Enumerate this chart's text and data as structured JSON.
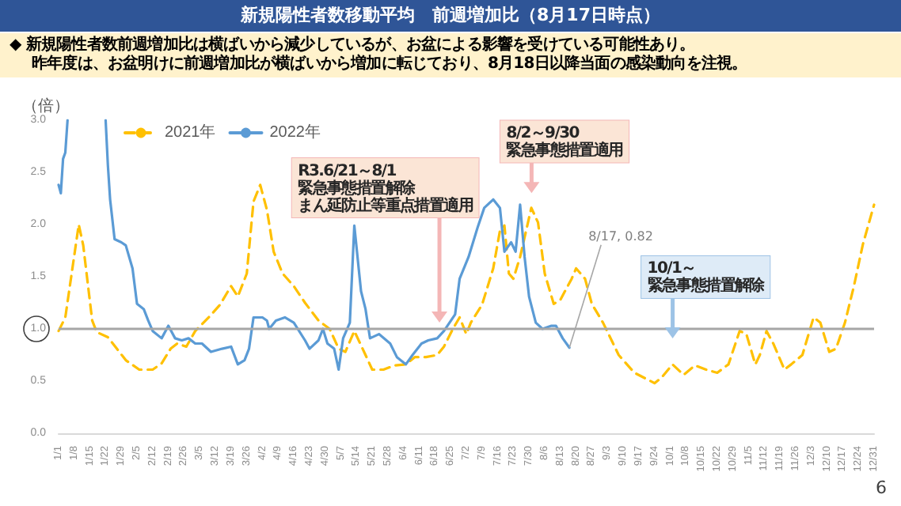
{
  "chart_data": {
    "type": "line",
    "title": "新規陽性者数移動平均　前週増加比（8月17日時点）",
    "subtitle": "◆ 新規陽性者数前週増加比は横ばいから減少しているが、お盆による影響を受けている可能性あり。昨年度は、お盆明けに前週増加比が横ばいから増加に転じており、8月18日以降当面の感染動向を注視。",
    "ylabel": "（倍）",
    "xlim": [
      "--01-01",
      "--12-31"
    ],
    "xticks": [
      {
        "value": "--01-01",
        "label": "1/1"
      },
      {
        "value": "--01-08",
        "label": "1/8"
      },
      {
        "value": "--01-15",
        "label": "1/15"
      },
      {
        "value": "--01-22",
        "label": "1/22"
      },
      {
        "value": "--01-29",
        "label": "1/29"
      },
      {
        "value": "--02-05",
        "label": "2/5"
      },
      {
        "value": "--02-12",
        "label": "2/12"
      },
      {
        "value": "--02-19",
        "label": "2/19"
      },
      {
        "value": "--02-26",
        "label": "2/26"
      },
      {
        "value": "--03-05",
        "label": "3/5"
      },
      {
        "value": "--03-12",
        "label": "3/12"
      },
      {
        "value": "--03-19",
        "label": "3/19"
      },
      {
        "value": "--03-26",
        "label": "3/26"
      },
      {
        "value": "--04-02",
        "label": "4/2"
      },
      {
        "value": "--04-09",
        "label": "4/9"
      },
      {
        "value": "--04-16",
        "label": "4/16"
      },
      {
        "value": "--04-23",
        "label": "4/23"
      },
      {
        "value": "--04-30",
        "label": "4/30"
      },
      {
        "value": "--05-07",
        "label": "5/7"
      },
      {
        "value": "--05-14",
        "label": "5/14"
      },
      {
        "value": "--05-21",
        "label": "5/21"
      },
      {
        "value": "--05-28",
        "label": "5/28"
      },
      {
        "value": "--06-04",
        "label": "6/4"
      },
      {
        "value": "--06-11",
        "label": "6/11"
      },
      {
        "value": "--06-18",
        "label": "6/18"
      },
      {
        "value": "--06-25",
        "label": "6/25"
      },
      {
        "value": "--07-02",
        "label": "7/2"
      },
      {
        "value": "--07-09",
        "label": "7/9"
      },
      {
        "value": "--07-16",
        "label": "7/16"
      },
      {
        "value": "--07-23",
        "label": "7/23"
      },
      {
        "value": "--07-30",
        "label": "7/30"
      },
      {
        "value": "--08-06",
        "label": "8/6"
      },
      {
        "value": "--08-13",
        "label": "8/13"
      },
      {
        "value": "--08-20",
        "label": "8/20"
      },
      {
        "value": "--08-27",
        "label": "8/27"
      },
      {
        "value": "--09-03",
        "label": "9/3"
      },
      {
        "value": "--09-10",
        "label": "9/10"
      },
      {
        "value": "--09-17",
        "label": "9/17"
      },
      {
        "value": "--09-24",
        "label": "9/24"
      },
      {
        "value": "--10-01",
        "label": "10/1"
      },
      {
        "value": "--10-08",
        "label": "10/8"
      },
      {
        "value": "--10-15",
        "label": "10/15"
      },
      {
        "value": "--10-22",
        "label": "10/22"
      },
      {
        "value": "--10-29",
        "label": "10/29"
      },
      {
        "value": "--11-05",
        "label": "11/5"
      },
      {
        "value": "--11-12",
        "label": "11/12"
      },
      {
        "value": "--11-19",
        "label": "11/19"
      },
      {
        "value": "--11-26",
        "label": "11/26"
      },
      {
        "value": "--12-03",
        "label": "12/3"
      },
      {
        "value": "--12-10",
        "label": "12/10"
      },
      {
        "value": "--12-17",
        "label": "12/17"
      },
      {
        "value": "--12-24",
        "label": "12/24"
      },
      {
        "value": "--12-31",
        "label": "12/31"
      }
    ],
    "ylim": [
      0,
      3
    ],
    "yticks": [
      {
        "value": 0,
        "label": "0.0"
      },
      {
        "value": 0.5,
        "label": "0.5"
      },
      {
        "value": 1,
        "label": "1.0"
      },
      {
        "value": 1.5,
        "label": "1.5"
      },
      {
        "value": 2,
        "label": "2.0"
      },
      {
        "value": 2.5,
        "label": "2.5"
      },
      {
        "value": 3,
        "label": "3.0"
      }
    ],
    "series": [
      {
        "name": "2021年",
        "color": "#ffc000",
        "line_style": "dashed",
        "x": [
          "--01-01",
          "--01-04",
          "--01-10",
          "--01-12",
          "--01-16",
          "--01-18",
          "--01-23",
          "--01-27",
          "--01-31",
          "--02-06",
          "--02-12",
          "--02-16",
          "--02-20",
          "--02-23",
          "--02-27",
          "--03-03",
          "--03-09",
          "--03-14",
          "--03-19",
          "--03-22",
          "--03-26",
          "--03-29",
          "--04-01",
          "--04-04",
          "--04-07",
          "--04-11",
          "--04-16",
          "--04-21",
          "--04-27",
          "--05-02",
          "--05-06",
          "--05-09",
          "--05-13",
          "--05-18",
          "--05-21",
          "--05-26",
          "--05-31",
          "--06-05",
          "--06-09",
          "--06-14",
          "--06-19",
          "--06-22",
          "--06-26",
          "--06-29",
          "--07-02",
          "--07-04",
          "--07-09",
          "--07-14",
          "--07-17",
          "--07-19",
          "--07-21",
          "--07-23",
          "--07-26",
          "--07-29",
          "--07-31",
          "--08-03",
          "--08-06",
          "--08-10",
          "--08-13",
          "--08-18",
          "--08-20",
          "--08-24",
          "--08-27",
          "--09-01",
          "--09-08",
          "--09-15",
          "--09-24",
          "--09-27",
          "--10-02",
          "--10-07",
          "--10-12",
          "--10-17",
          "--10-22",
          "--10-27",
          "--11-01",
          "--11-04",
          "--11-08",
          "--11-10",
          "--11-13",
          "--11-16",
          "--11-21",
          "--11-24",
          "--11-29",
          "--12-04",
          "--12-07",
          "--12-11",
          "--12-14",
          "--12-18",
          "--12-22",
          "--12-26",
          "--12-31"
        ],
        "values": [
          0.98,
          1.11,
          2.0,
          1.8,
          1.08,
          0.97,
          0.92,
          0.81,
          0.7,
          0.61,
          0.61,
          0.67,
          0.81,
          0.86,
          0.83,
          0.98,
          1.11,
          1.23,
          1.41,
          1.31,
          1.53,
          2.22,
          2.38,
          2.14,
          1.74,
          1.53,
          1.41,
          1.25,
          1.08,
          1.0,
          0.81,
          0.78,
          0.98,
          0.75,
          0.61,
          0.61,
          0.65,
          0.66,
          0.73,
          0.73,
          0.75,
          0.83,
          1.0,
          1.11,
          0.95,
          1.06,
          1.23,
          1.58,
          1.94,
          1.99,
          1.53,
          1.48,
          1.69,
          1.97,
          2.16,
          2.02,
          1.53,
          1.24,
          1.28,
          1.48,
          1.58,
          1.48,
          1.24,
          1.06,
          0.75,
          0.58,
          0.48,
          0.53,
          0.66,
          0.56,
          0.65,
          0.61,
          0.58,
          0.66,
          0.98,
          0.95,
          0.66,
          0.75,
          0.98,
          0.86,
          0.61,
          0.66,
          0.75,
          1.11,
          1.06,
          0.78,
          0.81,
          1.06,
          1.41,
          1.81,
          2.19
        ]
      },
      {
        "name": "2022年",
        "color": "#5b9bd5",
        "line_style": "solid",
        "x": [
          "--01-01",
          "--01-02",
          "--01-03",
          "--01-04",
          "--01-05",
          "--01-12",
          "--01-22",
          "--01-23",
          "--01-24",
          "--01-26",
          "--01-29",
          "--01-31",
          "--02-03",
          "--02-05",
          "--02-08",
          "--02-10",
          "--02-12",
          "--02-16",
          "--02-19",
          "--02-22",
          "--02-25",
          "--02-28",
          "--03-03",
          "--03-06",
          "--03-10",
          "--03-15",
          "--03-19",
          "--03-22",
          "--03-25",
          "--03-27",
          "--03-29",
          "--04-02",
          "--04-04",
          "--04-05",
          "--04-08",
          "--04-12",
          "--04-16",
          "--04-21",
          "--04-23",
          "--04-27",
          "--04-29",
          "--05-01",
          "--05-04",
          "--05-06",
          "--05-08",
          "--05-11",
          "--05-13",
          "--05-16",
          "--05-18",
          "--05-20",
          "--05-24",
          "--05-29",
          "--06-01",
          "--06-05",
          "--06-08",
          "--06-12",
          "--06-15",
          "--06-19",
          "--06-22",
          "--06-27",
          "--06-29",
          "--07-03",
          "--07-07",
          "--07-10",
          "--07-14",
          "--07-17",
          "--07-19",
          "--07-22",
          "--07-24",
          "--07-26",
          "--07-28",
          "--07-30",
          "--08-02",
          "--08-05",
          "--08-09",
          "--08-11",
          "--08-14",
          "--08-17"
        ],
        "values": [
          2.38,
          2.3,
          2.63,
          2.69,
          3.0,
          null,
          3.0,
          2.57,
          2.24,
          1.86,
          1.83,
          1.8,
          1.58,
          1.24,
          1.19,
          1.08,
          0.98,
          0.91,
          1.03,
          0.91,
          0.89,
          0.91,
          0.86,
          0.86,
          0.78,
          0.81,
          0.83,
          0.66,
          0.7,
          0.81,
          1.11,
          1.11,
          1.08,
          1.0,
          1.08,
          1.11,
          1.06,
          0.89,
          0.81,
          0.89,
          1.0,
          0.86,
          0.81,
          0.61,
          0.91,
          1.06,
          1.99,
          1.36,
          1.19,
          0.91,
          0.95,
          0.86,
          0.73,
          0.66,
          0.75,
          0.86,
          0.89,
          0.91,
          0.98,
          1.14,
          1.48,
          1.69,
          1.97,
          2.16,
          2.24,
          2.16,
          1.74,
          1.83,
          1.74,
          2.19,
          1.69,
          1.31,
          1.06,
          1.0,
          1.03,
          1.03,
          0.91,
          0.82
        ]
      }
    ],
    "ref_lines": [
      {
        "axis": "y",
        "value": 1,
        "color": "#a6a6a6"
      }
    ],
    "annotations": [
      {
        "text": "R3.6/21～8/1緊急事態措置解除まん延防止等重点措置適用",
        "x": "--06-20",
        "y": 1.06
      },
      "8/2～9/30緊急事態措置適用",
      "10/1～緊急事態措置解除",
      {
        "text": "8/17, 0.82",
        "x": "--08-17",
        "y": 0.82
      },
      "6"
    ],
    "grid": false,
    "legend": "top left"
  }
}
